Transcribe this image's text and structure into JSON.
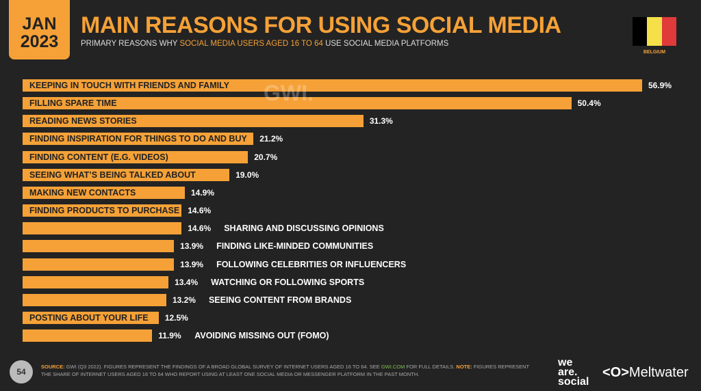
{
  "header": {
    "month": "JAN",
    "year": "2023",
    "title": "MAIN REASONS FOR USING SOCIAL MEDIA",
    "subtitle_pre": "PRIMARY REASONS WHY ",
    "subtitle_hl": "SOCIAL MEDIA USERS AGED 16 TO 64",
    "subtitle_post": " USE SOCIAL MEDIA PLATFORMS",
    "country": "BELGIUM",
    "flag_colors": [
      "#000000",
      "#f5e04a",
      "#e03a3a"
    ]
  },
  "watermark": "GWI.",
  "chart_data": {
    "type": "bar",
    "orientation": "horizontal",
    "title": "MAIN REASONS FOR USING SOCIAL MEDIA",
    "bar_color": "#f5a137",
    "xlim": [
      0,
      56.9
    ],
    "categories": [
      "KEEPING IN TOUCH WITH FRIENDS AND FAMILY",
      "FILLING SPARE TIME",
      "READING NEWS STORIES",
      "FINDING INSPIRATION FOR THINGS TO DO AND BUY",
      "FINDING CONTENT (E.G. VIDEOS)",
      "SEEING WHAT’S BEING TALKED ABOUT",
      "MAKING NEW CONTACTS",
      "FINDING PRODUCTS TO PURCHASE",
      "SHARING AND DISCUSSING OPINIONS",
      "FINDING LIKE-MINDED COMMUNITIES",
      "FOLLOWING CELEBRITIES OR INFLUENCERS",
      "WATCHING OR FOLLOWING SPORTS",
      "SEEING CONTENT FROM BRANDS",
      "POSTING ABOUT YOUR LIFE",
      "AVOIDING MISSING OUT (FOMO)"
    ],
    "values": [
      56.9,
      50.4,
      31.3,
      21.2,
      20.7,
      19.0,
      14.9,
      14.6,
      14.6,
      13.9,
      13.9,
      13.4,
      13.2,
      12.5,
      11.9
    ],
    "value_labels": [
      "56.9%",
      "50.4%",
      "31.3%",
      "21.2%",
      "20.7%",
      "19.0%",
      "14.9%",
      "14.6%",
      "14.6%",
      "13.9%",
      "13.9%",
      "13.4%",
      "13.2%",
      "12.5%",
      "11.9%"
    ],
    "label_inside": [
      true,
      true,
      true,
      true,
      true,
      true,
      true,
      true,
      false,
      false,
      false,
      false,
      false,
      true,
      false
    ]
  },
  "footer": {
    "page": "54",
    "source_label": "SOURCE:",
    "source_text": " GWI (Q3 2022). FIGURES REPRESENT THE FINDINGS OF A BROAD GLOBAL SURVEY OF INTERNET USERS AGED 16 TO 64. SEE ",
    "source_link": "GWI.COM",
    "source_text2": " FOR FULL DETAILS. ",
    "note_label": "NOTE:",
    "note_text": " FIGURES REPRESENT THE SHARE OF INTERNET USERS AGED 16 TO 64 WHO REPORT USING AT LEAST ONE SOCIAL MEDIA OR MESSENGER PLATFORM IN THE PAST MONTH.",
    "brand1": [
      "we",
      "are.",
      "social"
    ],
    "brand2": "Meltwater"
  }
}
